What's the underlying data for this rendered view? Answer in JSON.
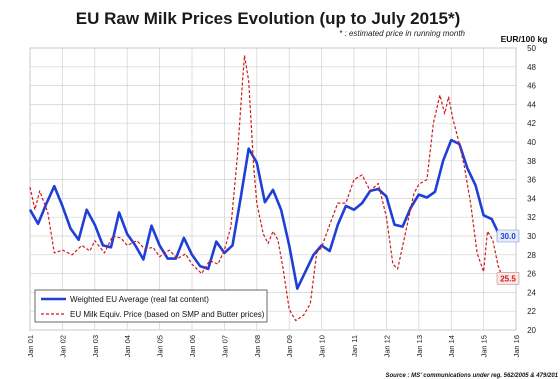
{
  "chart_data": {
    "type": "line",
    "title": "EU Raw Milk Prices Evolution (up to  July 2015*)",
    "note": "* : estimated price in running month",
    "ylabel": "EUR/100 kg",
    "ylim": [
      20,
      50
    ],
    "yticks": [
      20,
      22,
      24,
      26,
      28,
      30,
      32,
      34,
      36,
      38,
      40,
      42,
      44,
      46,
      48,
      50
    ],
    "xlim": [
      2001,
      2016
    ],
    "xticks": [
      "Jan 01",
      "Jan 02",
      "Jan 03",
      "Jan 04",
      "Jan 05",
      "Jan 06",
      "Jan 07",
      "Jan 08",
      "Jan 09",
      "Jan 10",
      "Jan 11",
      "Jan 12",
      "Jan 13",
      "Jan 14",
      "Jan 15",
      "Jan 16"
    ],
    "grid": true,
    "legend_position": "bottom-left",
    "series": [
      {
        "name": "Weighted EU Average (real fat content)",
        "color": "#1f3fd6",
        "style": "solid",
        "end_label": "30.0",
        "points": [
          [
            2001.0,
            32.8
          ],
          [
            2001.25,
            31.3
          ],
          [
            2001.5,
            33.4
          ],
          [
            2001.75,
            35.3
          ],
          [
            2002.0,
            33.2
          ],
          [
            2002.25,
            30.8
          ],
          [
            2002.5,
            29.6
          ],
          [
            2002.75,
            32.8
          ],
          [
            2003.0,
            31.2
          ],
          [
            2003.25,
            29.0
          ],
          [
            2003.5,
            28.8
          ],
          [
            2003.75,
            32.5
          ],
          [
            2004.0,
            30.2
          ],
          [
            2004.25,
            29.0
          ],
          [
            2004.5,
            27.5
          ],
          [
            2004.75,
            31.1
          ],
          [
            2005.0,
            29.0
          ],
          [
            2005.25,
            27.6
          ],
          [
            2005.5,
            27.6
          ],
          [
            2005.75,
            29.8
          ],
          [
            2006.0,
            28.0
          ],
          [
            2006.25,
            26.8
          ],
          [
            2006.5,
            26.5
          ],
          [
            2006.75,
            29.4
          ],
          [
            2007.0,
            28.2
          ],
          [
            2007.25,
            29.0
          ],
          [
            2007.5,
            34.0
          ],
          [
            2007.75,
            39.3
          ],
          [
            2008.0,
            37.8
          ],
          [
            2008.25,
            33.6
          ],
          [
            2008.5,
            34.9
          ],
          [
            2008.75,
            32.8
          ],
          [
            2009.0,
            29.0
          ],
          [
            2009.25,
            24.4
          ],
          [
            2009.5,
            26.2
          ],
          [
            2009.75,
            28.0
          ],
          [
            2010.0,
            29.0
          ],
          [
            2010.25,
            28.4
          ],
          [
            2010.5,
            31.2
          ],
          [
            2010.75,
            33.2
          ],
          [
            2011.0,
            32.8
          ],
          [
            2011.25,
            33.5
          ],
          [
            2011.5,
            34.8
          ],
          [
            2011.75,
            35.0
          ],
          [
            2012.0,
            34.2
          ],
          [
            2012.25,
            31.2
          ],
          [
            2012.5,
            31.0
          ],
          [
            2012.75,
            33.0
          ],
          [
            2013.0,
            34.4
          ],
          [
            2013.25,
            34.1
          ],
          [
            2013.5,
            34.7
          ],
          [
            2013.75,
            38.0
          ],
          [
            2014.0,
            40.2
          ],
          [
            2014.25,
            39.8
          ],
          [
            2014.5,
            37.2
          ],
          [
            2014.75,
            35.4
          ],
          [
            2015.0,
            32.2
          ],
          [
            2015.25,
            31.8
          ],
          [
            2015.5,
            30.0
          ]
        ]
      },
      {
        "name": "EU Milk Equiv. Price (based on SMP and Butter prices)",
        "color": "#cc1b1b",
        "style": "dashed",
        "end_label": "25.5",
        "points": [
          [
            2001.0,
            35.2
          ],
          [
            2001.15,
            32.8
          ],
          [
            2001.3,
            34.8
          ],
          [
            2001.55,
            32.5
          ],
          [
            2001.75,
            28.2
          ],
          [
            2002.0,
            28.5
          ],
          [
            2002.3,
            28.0
          ],
          [
            2002.6,
            29.0
          ],
          [
            2002.85,
            28.4
          ],
          [
            2003.0,
            29.5
          ],
          [
            2003.3,
            28.2
          ],
          [
            2003.55,
            30.0
          ],
          [
            2003.8,
            29.8
          ],
          [
            2004.0,
            29.0
          ],
          [
            2004.3,
            29.5
          ],
          [
            2004.55,
            28.6
          ],
          [
            2004.8,
            28.8
          ],
          [
            2005.0,
            27.8
          ],
          [
            2005.3,
            28.5
          ],
          [
            2005.55,
            27.6
          ],
          [
            2005.8,
            28.1
          ],
          [
            2006.0,
            27.0
          ],
          [
            2006.3,
            26.0
          ],
          [
            2006.55,
            27.4
          ],
          [
            2006.8,
            27.0
          ],
          [
            2007.0,
            28.5
          ],
          [
            2007.2,
            31.0
          ],
          [
            2007.4,
            38.5
          ],
          [
            2007.55,
            46.0
          ],
          [
            2007.62,
            49.2
          ],
          [
            2007.75,
            46.5
          ],
          [
            2007.9,
            37.5
          ],
          [
            2008.0,
            33.5
          ],
          [
            2008.2,
            30.2
          ],
          [
            2008.35,
            29.2
          ],
          [
            2008.5,
            30.5
          ],
          [
            2008.65,
            29.6
          ],
          [
            2008.8,
            26.8
          ],
          [
            2009.0,
            22.2
          ],
          [
            2009.2,
            21.0
          ],
          [
            2009.45,
            21.6
          ],
          [
            2009.65,
            22.8
          ],
          [
            2009.85,
            28.2
          ],
          [
            2010.0,
            28.8
          ],
          [
            2010.25,
            31.2
          ],
          [
            2010.5,
            33.5
          ],
          [
            2010.75,
            33.5
          ],
          [
            2011.0,
            36.0
          ],
          [
            2011.25,
            36.5
          ],
          [
            2011.5,
            34.8
          ],
          [
            2011.75,
            35.6
          ],
          [
            2012.0,
            32.0
          ],
          [
            2012.2,
            27.0
          ],
          [
            2012.35,
            26.5
          ],
          [
            2012.6,
            30.5
          ],
          [
            2012.85,
            34.5
          ],
          [
            2013.0,
            35.5
          ],
          [
            2013.25,
            36.0
          ],
          [
            2013.45,
            42.0
          ],
          [
            2013.65,
            45.0
          ],
          [
            2013.8,
            43.0
          ],
          [
            2013.92,
            44.8
          ],
          [
            2014.05,
            42.5
          ],
          [
            2014.2,
            40.5
          ],
          [
            2014.4,
            37.5
          ],
          [
            2014.6,
            33.5
          ],
          [
            2014.8,
            28.2
          ],
          [
            2015.0,
            26.2
          ],
          [
            2015.12,
            30.5
          ],
          [
            2015.28,
            29.6
          ],
          [
            2015.45,
            26.8
          ],
          [
            2015.6,
            25.5
          ]
        ]
      }
    ]
  },
  "source_text": "Source : MS' communications under reg. 562/2005 & 479/201"
}
